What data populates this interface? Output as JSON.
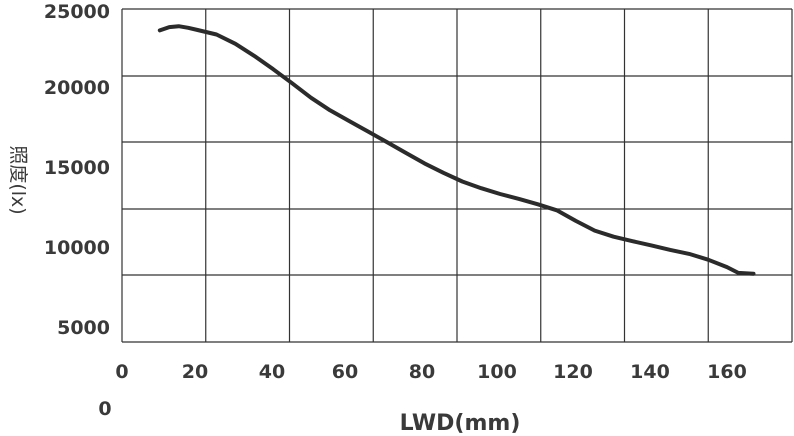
{
  "chart_data": {
    "type": "line",
    "title": "",
    "xlabel": "LWD(mm)",
    "ylabel": "照度(lx)",
    "extra_zero_label": "0",
    "xlim": [
      0,
      180
    ],
    "xticks": [
      0,
      20,
      40,
      60,
      80,
      100,
      120,
      140,
      160
    ],
    "yticks": [
      5000,
      10000,
      15000,
      20000,
      25000
    ],
    "grid": true,
    "colors": {
      "line": "#2b2b2b",
      "grid": "#333333",
      "text": "#3a3a3a"
    },
    "series": [
      {
        "x": [
          10,
          12.5,
          15,
          17.5,
          20,
          25,
          30,
          35,
          40,
          45,
          50,
          55,
          60,
          65,
          70,
          75,
          80,
          85,
          90,
          95,
          100,
          105,
          110,
          115,
          120,
          125,
          130,
          135,
          140,
          145,
          150,
          155,
          160,
          163,
          167
        ],
        "y": [
          23400,
          23650,
          23720,
          23600,
          23430,
          23100,
          22400,
          21500,
          20500,
          19450,
          18350,
          17400,
          16600,
          15800,
          15000,
          14200,
          13400,
          12700,
          12050,
          11550,
          11120,
          10750,
          10350,
          9950,
          9550,
          9180,
          8950,
          8780,
          8620,
          8450,
          8300,
          8080,
          7800,
          7580,
          7550
        ]
      }
    ]
  }
}
